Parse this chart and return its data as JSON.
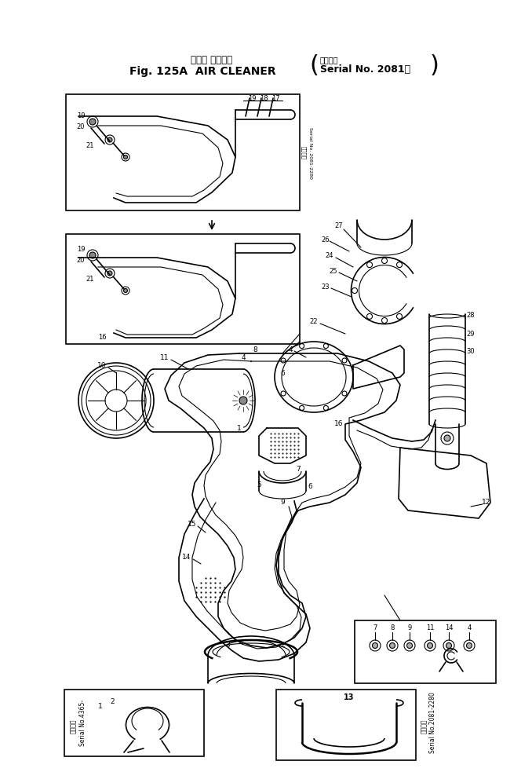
{
  "title_japanese": "エアー クリーナ",
  "title_english": "Fig. 125A  AIR CLEANER",
  "title_serial_jp": "適用号機",
  "title_serial": "Serial No. 2081－",
  "bg_color": "#ffffff",
  "line_color": "#000000",
  "fig_width": 6.78,
  "fig_height": 9.83,
  "dpi": 100
}
